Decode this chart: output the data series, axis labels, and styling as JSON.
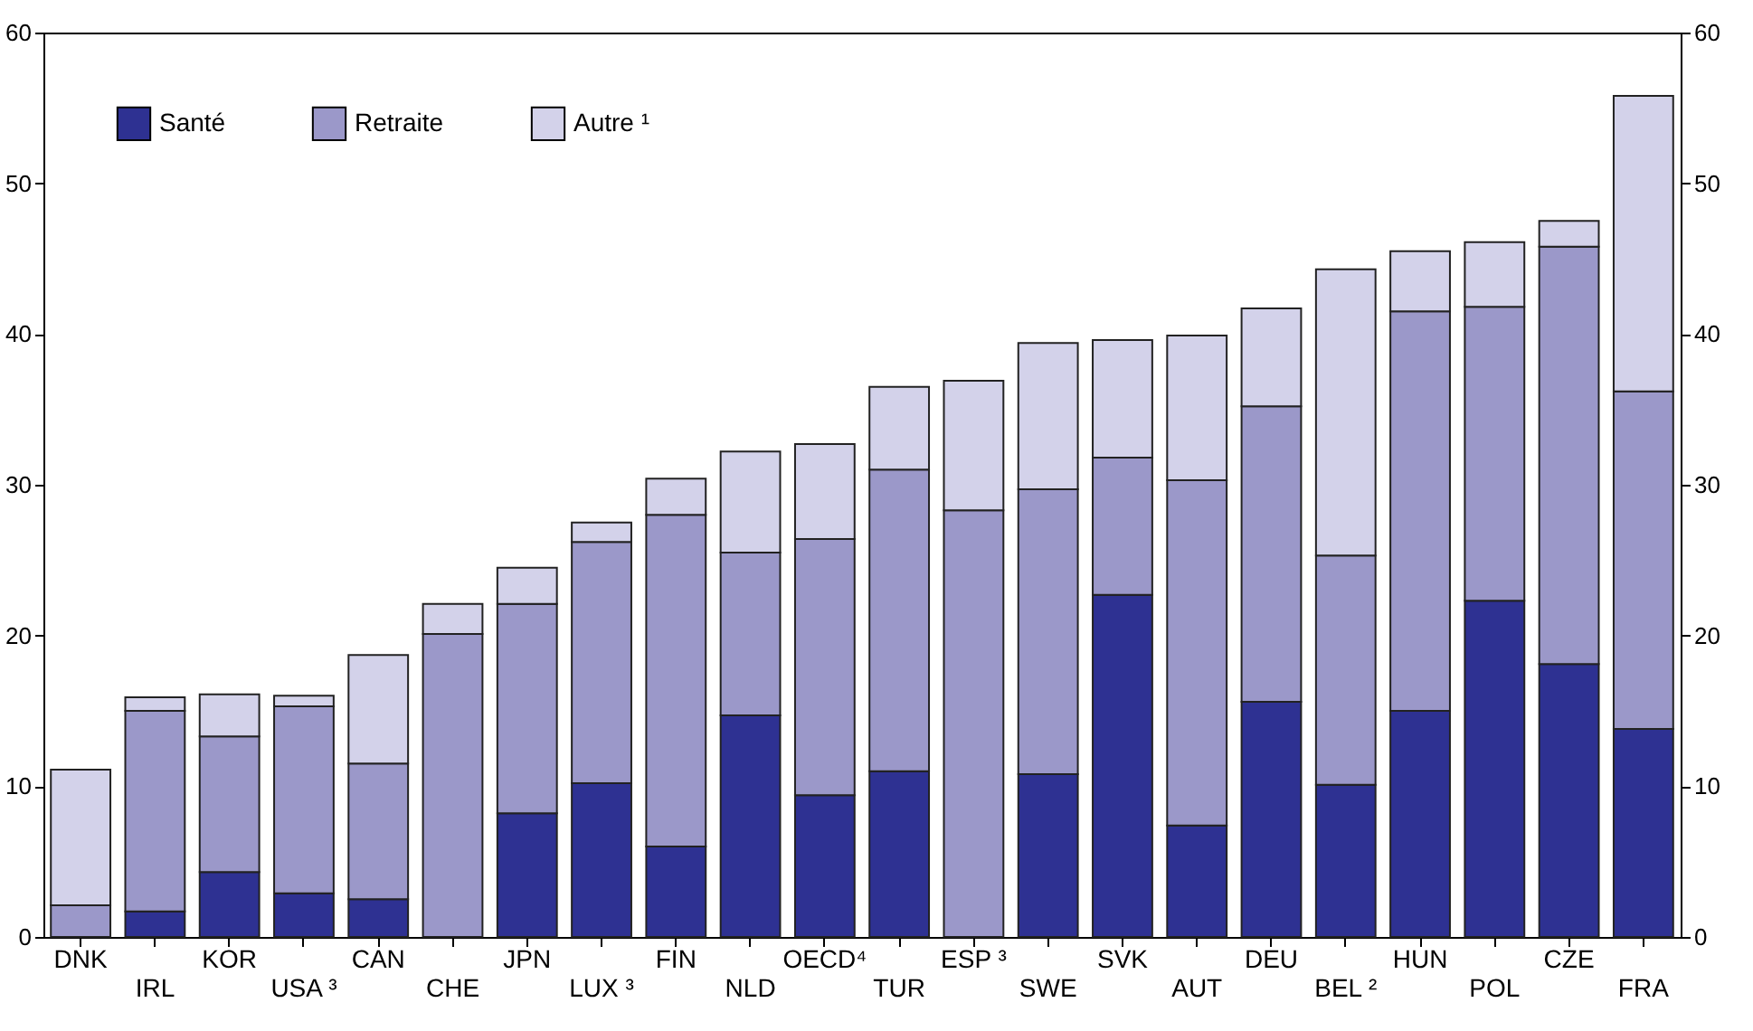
{
  "chart_data": {
    "type": "bar",
    "stacked": true,
    "categories": [
      "DNK",
      "IRL",
      "KOR",
      "USA ³",
      "CAN",
      "CHE",
      "JPN",
      "LUX ³",
      "FIN",
      "NLD",
      "OECD⁴",
      "TUR",
      "ESP ³",
      "SWE",
      "SVK",
      "AUT",
      "DEU",
      "BEL ²",
      "HUN",
      "POL",
      "CZE",
      "FRA"
    ],
    "series": [
      {
        "name": "Santé",
        "color": "#2e3192",
        "values": [
          0,
          1.7,
          4.3,
          2.9,
          2.5,
          0,
          8.2,
          10.2,
          6.0,
          14.7,
          9.4,
          11.0,
          0,
          10.8,
          22.7,
          7.4,
          15.6,
          10.1,
          15.0,
          22.3,
          18.1,
          13.8
        ]
      },
      {
        "name": "Retraite",
        "color": "#9b98c9",
        "values": [
          2.1,
          13.3,
          9.0,
          12.4,
          9.0,
          20.1,
          13.9,
          16.0,
          22.0,
          10.8,
          17.0,
          20.0,
          28.3,
          18.9,
          9.1,
          22.9,
          19.6,
          15.2,
          26.5,
          19.5,
          27.7,
          22.4
        ]
      },
      {
        "name": "Autre ¹",
        "color": "#d3d2ea",
        "values": [
          9.0,
          0.9,
          2.8,
          0.7,
          7.2,
          2.0,
          2.4,
          1.3,
          2.4,
          6.7,
          6.3,
          5.5,
          8.6,
          9.7,
          7.8,
          9.6,
          6.5,
          19.0,
          4.0,
          4.3,
          1.7,
          19.6
        ]
      }
    ],
    "ylim": [
      0,
      60
    ],
    "yticks": [
      0,
      10,
      20,
      30,
      40,
      50,
      60
    ],
    "y2lim": [
      0,
      60
    ],
    "y2ticks": [
      0,
      10,
      20,
      30,
      40,
      50,
      60
    ],
    "grid": false,
    "legend": "top left"
  }
}
